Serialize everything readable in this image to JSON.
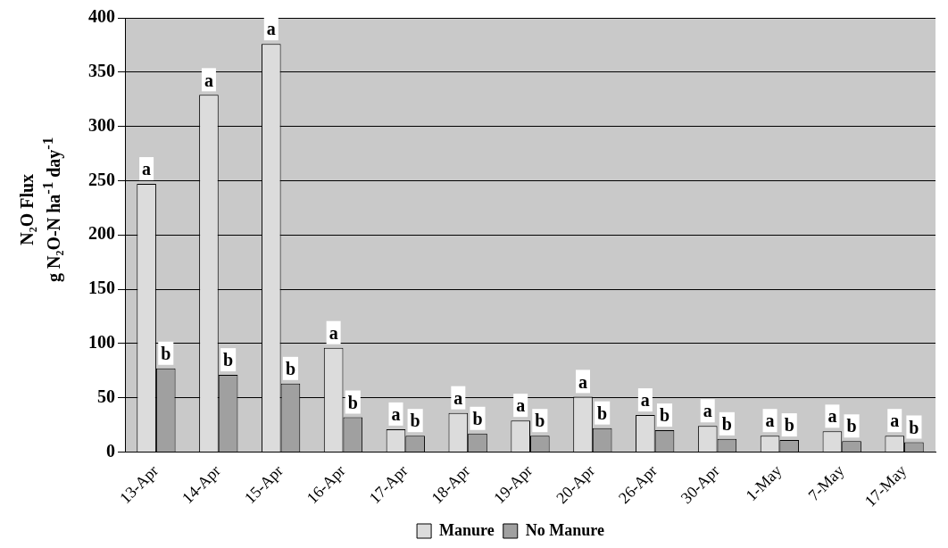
{
  "chart_data": {
    "type": "bar",
    "ylabel": "N₂O Flux\ng N₂O-N ha$^{-1}$ day$^{-1}$",
    "categories": [
      "13-Apr",
      "14-Apr",
      "15-Apr",
      "16-Apr",
      "17-Apr",
      "18-Apr",
      "19-Apr",
      "20-Apr",
      "26-Apr",
      "30-Apr",
      "1-May",
      "7-May",
      "17-May"
    ],
    "series": [
      {
        "name": "Manure",
        "color": "#dcdcdc",
        "values": [
          247,
          329,
          376,
          96,
          21,
          36,
          29,
          51,
          34,
          24,
          15,
          19,
          15
        ],
        "value_labels": [
          "a",
          "a",
          "a",
          "a",
          "a",
          "a",
          "a",
          "a",
          "a",
          "a",
          "a",
          "a",
          "a"
        ]
      },
      {
        "name": "No Manure",
        "color": "#a0a0a0",
        "values": [
          77,
          71,
          63,
          32,
          15,
          17,
          15,
          22,
          20,
          12,
          11,
          10,
          9
        ],
        "value_labels": [
          "b",
          "b",
          "b",
          "b",
          "b",
          "b",
          "b",
          "b",
          "b",
          "b",
          "b",
          "b",
          "b"
        ]
      }
    ],
    "ylim": [
      0,
      400
    ],
    "yticks": [
      0,
      50,
      100,
      150,
      200,
      250,
      300,
      350,
      400
    ],
    "grid": "y",
    "legend": "bottom"
  }
}
